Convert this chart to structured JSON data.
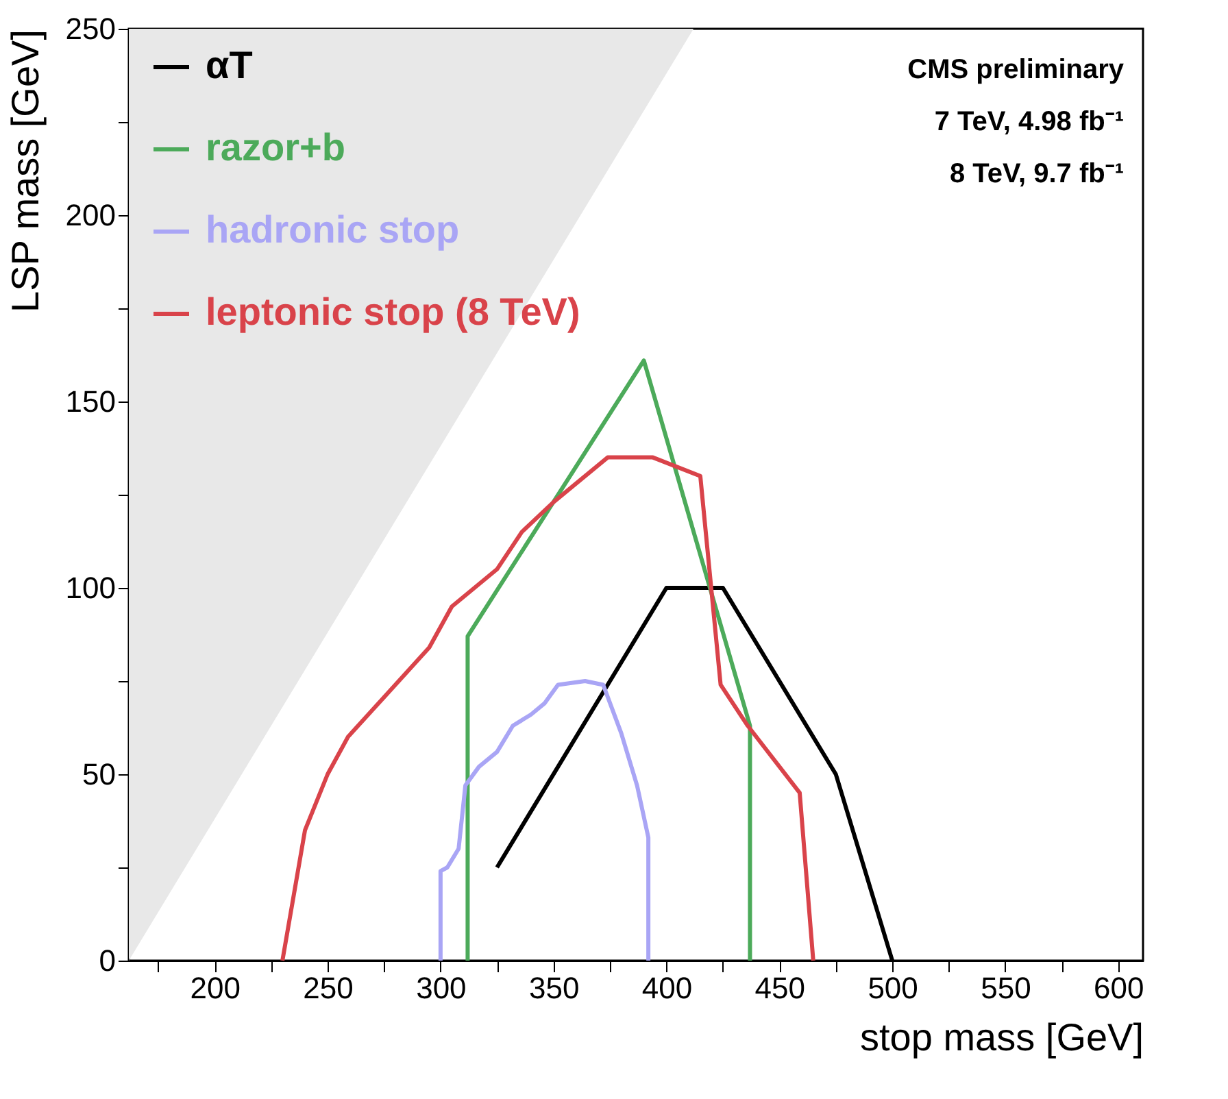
{
  "chart_data": {
    "type": "line",
    "xlabel": "stop mass [GeV]",
    "ylabel": "LSP mass [GeV]",
    "xlim": [
      162,
      611
    ],
    "ylim": [
      0,
      250
    ],
    "xticks": [
      {
        "value": 175,
        "label": null
      },
      200,
      {
        "value": 225,
        "label": null
      },
      250,
      {
        "value": 275,
        "label": null
      },
      300,
      {
        "value": 325,
        "label": null
      },
      350,
      {
        "value": 375,
        "label": null
      },
      400,
      {
        "value": 425,
        "label": null
      },
      450,
      {
        "value": 475,
        "label": null
      },
      500,
      {
        "value": 525,
        "label": null
      },
      550,
      {
        "value": 575,
        "label": null
      },
      600
    ],
    "yticks": [
      0,
      {
        "value": 25,
        "label": null
      },
      50,
      {
        "value": 75,
        "label": null
      },
      100,
      {
        "value": 125,
        "label": null
      },
      150,
      {
        "value": 175,
        "label": null
      },
      200,
      {
        "value": 225,
        "label": null
      },
      250
    ],
    "legend": "top left",
    "line_style": "solid",
    "marker": "none",
    "annotations": [
      "CMS preliminary",
      "7 TeV, 4.98 fb⁻¹",
      "8 TeV, 9.7 fb⁻¹"
    ],
    "series": [
      {
        "type": "area",
        "color": "#e8e8e8",
        "x": [
          162,
          412
        ],
        "values": [
          0,
          250
        ]
      },
      {
        "name": "αT",
        "color": "#000000",
        "x": [
          325,
          400,
          425,
          475,
          500
        ],
        "values": [
          25,
          100,
          100,
          50,
          0
        ]
      },
      {
        "name": "razor+b",
        "color": "#4caa5a",
        "x": [
          312,
          312,
          390,
          437,
          437
        ],
        "values": [
          0,
          87,
          161,
          63,
          0
        ]
      },
      {
        "name": "hadronic stop",
        "color": "#a9a5f5",
        "x": [
          300,
          300,
          303,
          308,
          311,
          317,
          325,
          332,
          340,
          346,
          352,
          364,
          372,
          380,
          387,
          392,
          392
        ],
        "values": [
          0,
          24,
          25,
          30,
          47,
          52,
          56,
          63,
          66,
          69,
          74,
          75,
          74,
          61,
          47,
          33,
          0
        ]
      },
      {
        "name": "leptonic stop (8 TeV)",
        "color": "#d9434a",
        "x": [
          230,
          240,
          250,
          259,
          271,
          295,
          305,
          325,
          336,
          350,
          374,
          394,
          415,
          424,
          436,
          459,
          465
        ],
        "values": [
          0,
          35,
          50,
          60,
          68,
          84,
          95,
          105,
          115,
          123,
          135,
          135,
          130,
          74,
          63,
          45,
          0
        ]
      }
    ]
  }
}
